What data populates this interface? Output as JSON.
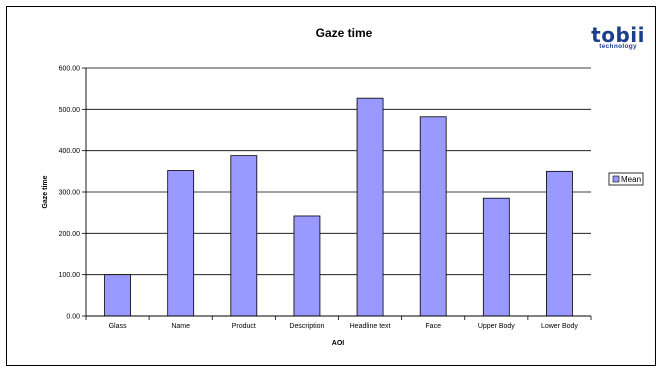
{
  "chart_data": {
    "type": "bar",
    "title": "Gaze time",
    "xlabel": "AOI",
    "ylabel": "Gaze time",
    "categories": [
      "Glass",
      "Name",
      "Product",
      "Description",
      "Headline text",
      "Face",
      "Upper Body",
      "Lower Body"
    ],
    "series": [
      {
        "name": "Mean",
        "values": [
          100,
          352,
          388,
          242,
          527,
          482,
          285,
          350
        ]
      }
    ],
    "ylim": [
      0,
      600
    ],
    "yticks": [
      "0.00",
      "100.00",
      "200.00",
      "300.00",
      "400.00",
      "500.00",
      "600.00"
    ],
    "grid": true,
    "legend": "right",
    "colors": {
      "bar": "#9999ff",
      "stroke": "#000000"
    }
  },
  "logo": {
    "word": "tobii",
    "sub": "technology",
    "color": "#1b3f8b"
  }
}
